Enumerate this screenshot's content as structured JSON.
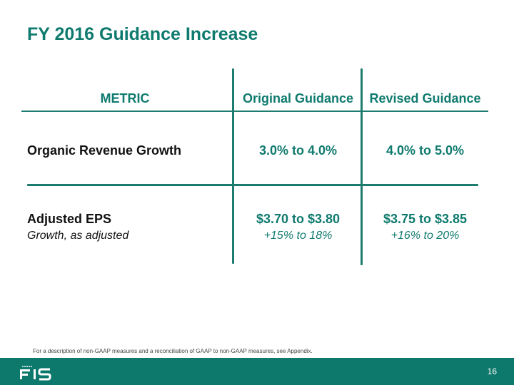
{
  "title": "FY 2016 Guidance Increase",
  "table": {
    "headers": {
      "metric": "METRIC",
      "original": "Original Guidance",
      "revised": "Revised Guidance"
    },
    "rows": [
      {
        "label": "Organic Revenue Growth",
        "original": "3.0% to 4.0%",
        "revised": "4.0% to 5.0%"
      },
      {
        "label": "Adjusted EPS",
        "sublabel": "Growth, as adjusted",
        "original": "$3.70 to $3.80",
        "original_sub": "+15% to 18%",
        "revised": "$3.75 to $3.85",
        "revised_sub": "+16% to 20%"
      }
    ]
  },
  "footnote": "For a description of non-GAAP measures and a reconciliation of GAAP to non-GAAP measures, see Appendix.",
  "footer": {
    "logo_text": "FIS",
    "page_number": "16"
  },
  "colors": {
    "accent": "#0f7a6e",
    "footer": "#0d786c"
  }
}
